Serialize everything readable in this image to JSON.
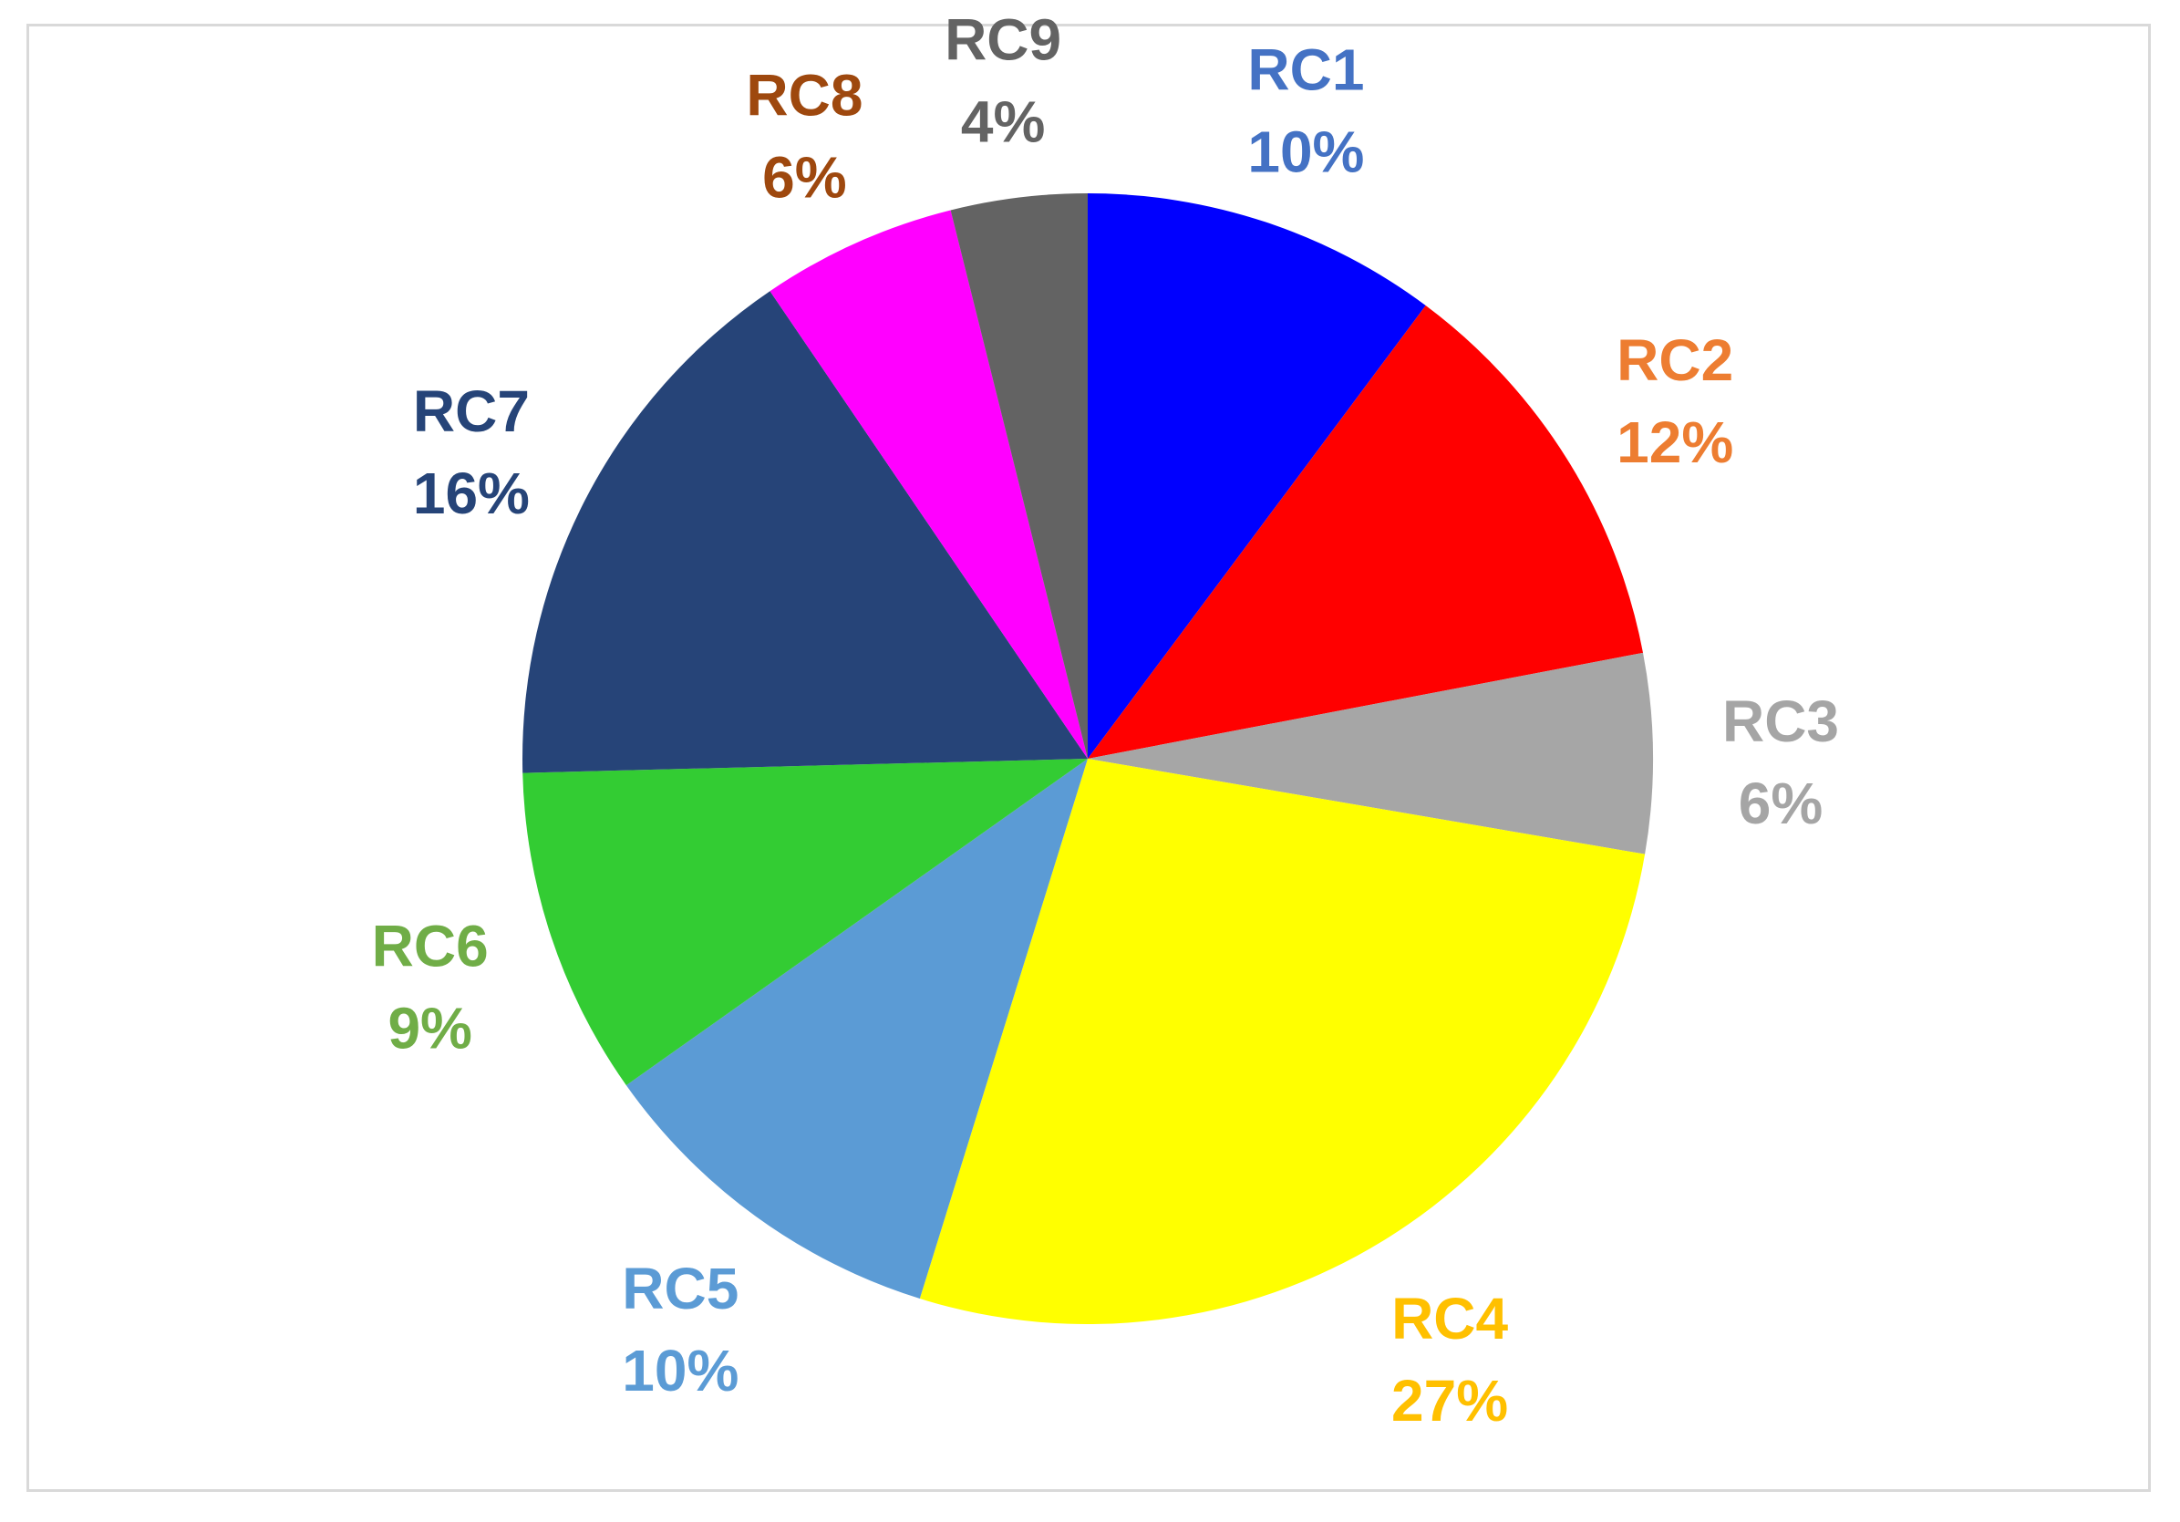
{
  "chart_data": {
    "type": "pie",
    "title": "",
    "start_angle": "12 o'clock",
    "direction": "clockwise",
    "slices": [
      {
        "label": "RC1",
        "percent_label": "10%",
        "value": 10.2,
        "color": "#0000FF",
        "label_color": "#4472C4"
      },
      {
        "label": "RC2",
        "percent_label": "12%",
        "value": 11.8,
        "color": "#FF0000",
        "label_color": "#ED7D31"
      },
      {
        "label": "RC3",
        "percent_label": "6%",
        "value": 5.7,
        "color": "#A6A6A6",
        "label_color": "#A5A5A5"
      },
      {
        "label": "RC4",
        "percent_label": "27%",
        "value": 27.1,
        "color": "#FFFF00",
        "label_color": "#FFC000"
      },
      {
        "label": "RC5",
        "percent_label": "10%",
        "value": 10.4,
        "color": "#5B9BD5",
        "label_color": "#5B9BD5"
      },
      {
        "label": "RC6",
        "percent_label": "9%",
        "value": 9.4,
        "color": "#33CC33",
        "label_color": "#70AD47"
      },
      {
        "label": "RC7",
        "percent_label": "16%",
        "value": 15.9,
        "color": "#264478",
        "label_color": "#264478"
      },
      {
        "label": "RC8",
        "percent_label": "6%",
        "value": 5.6,
        "color": "#FF00FF",
        "label_color": "#9E480E"
      },
      {
        "label": "RC9",
        "percent_label": "4%",
        "value": 3.9,
        "color": "#636363",
        "label_color": "#636363"
      }
    ]
  }
}
